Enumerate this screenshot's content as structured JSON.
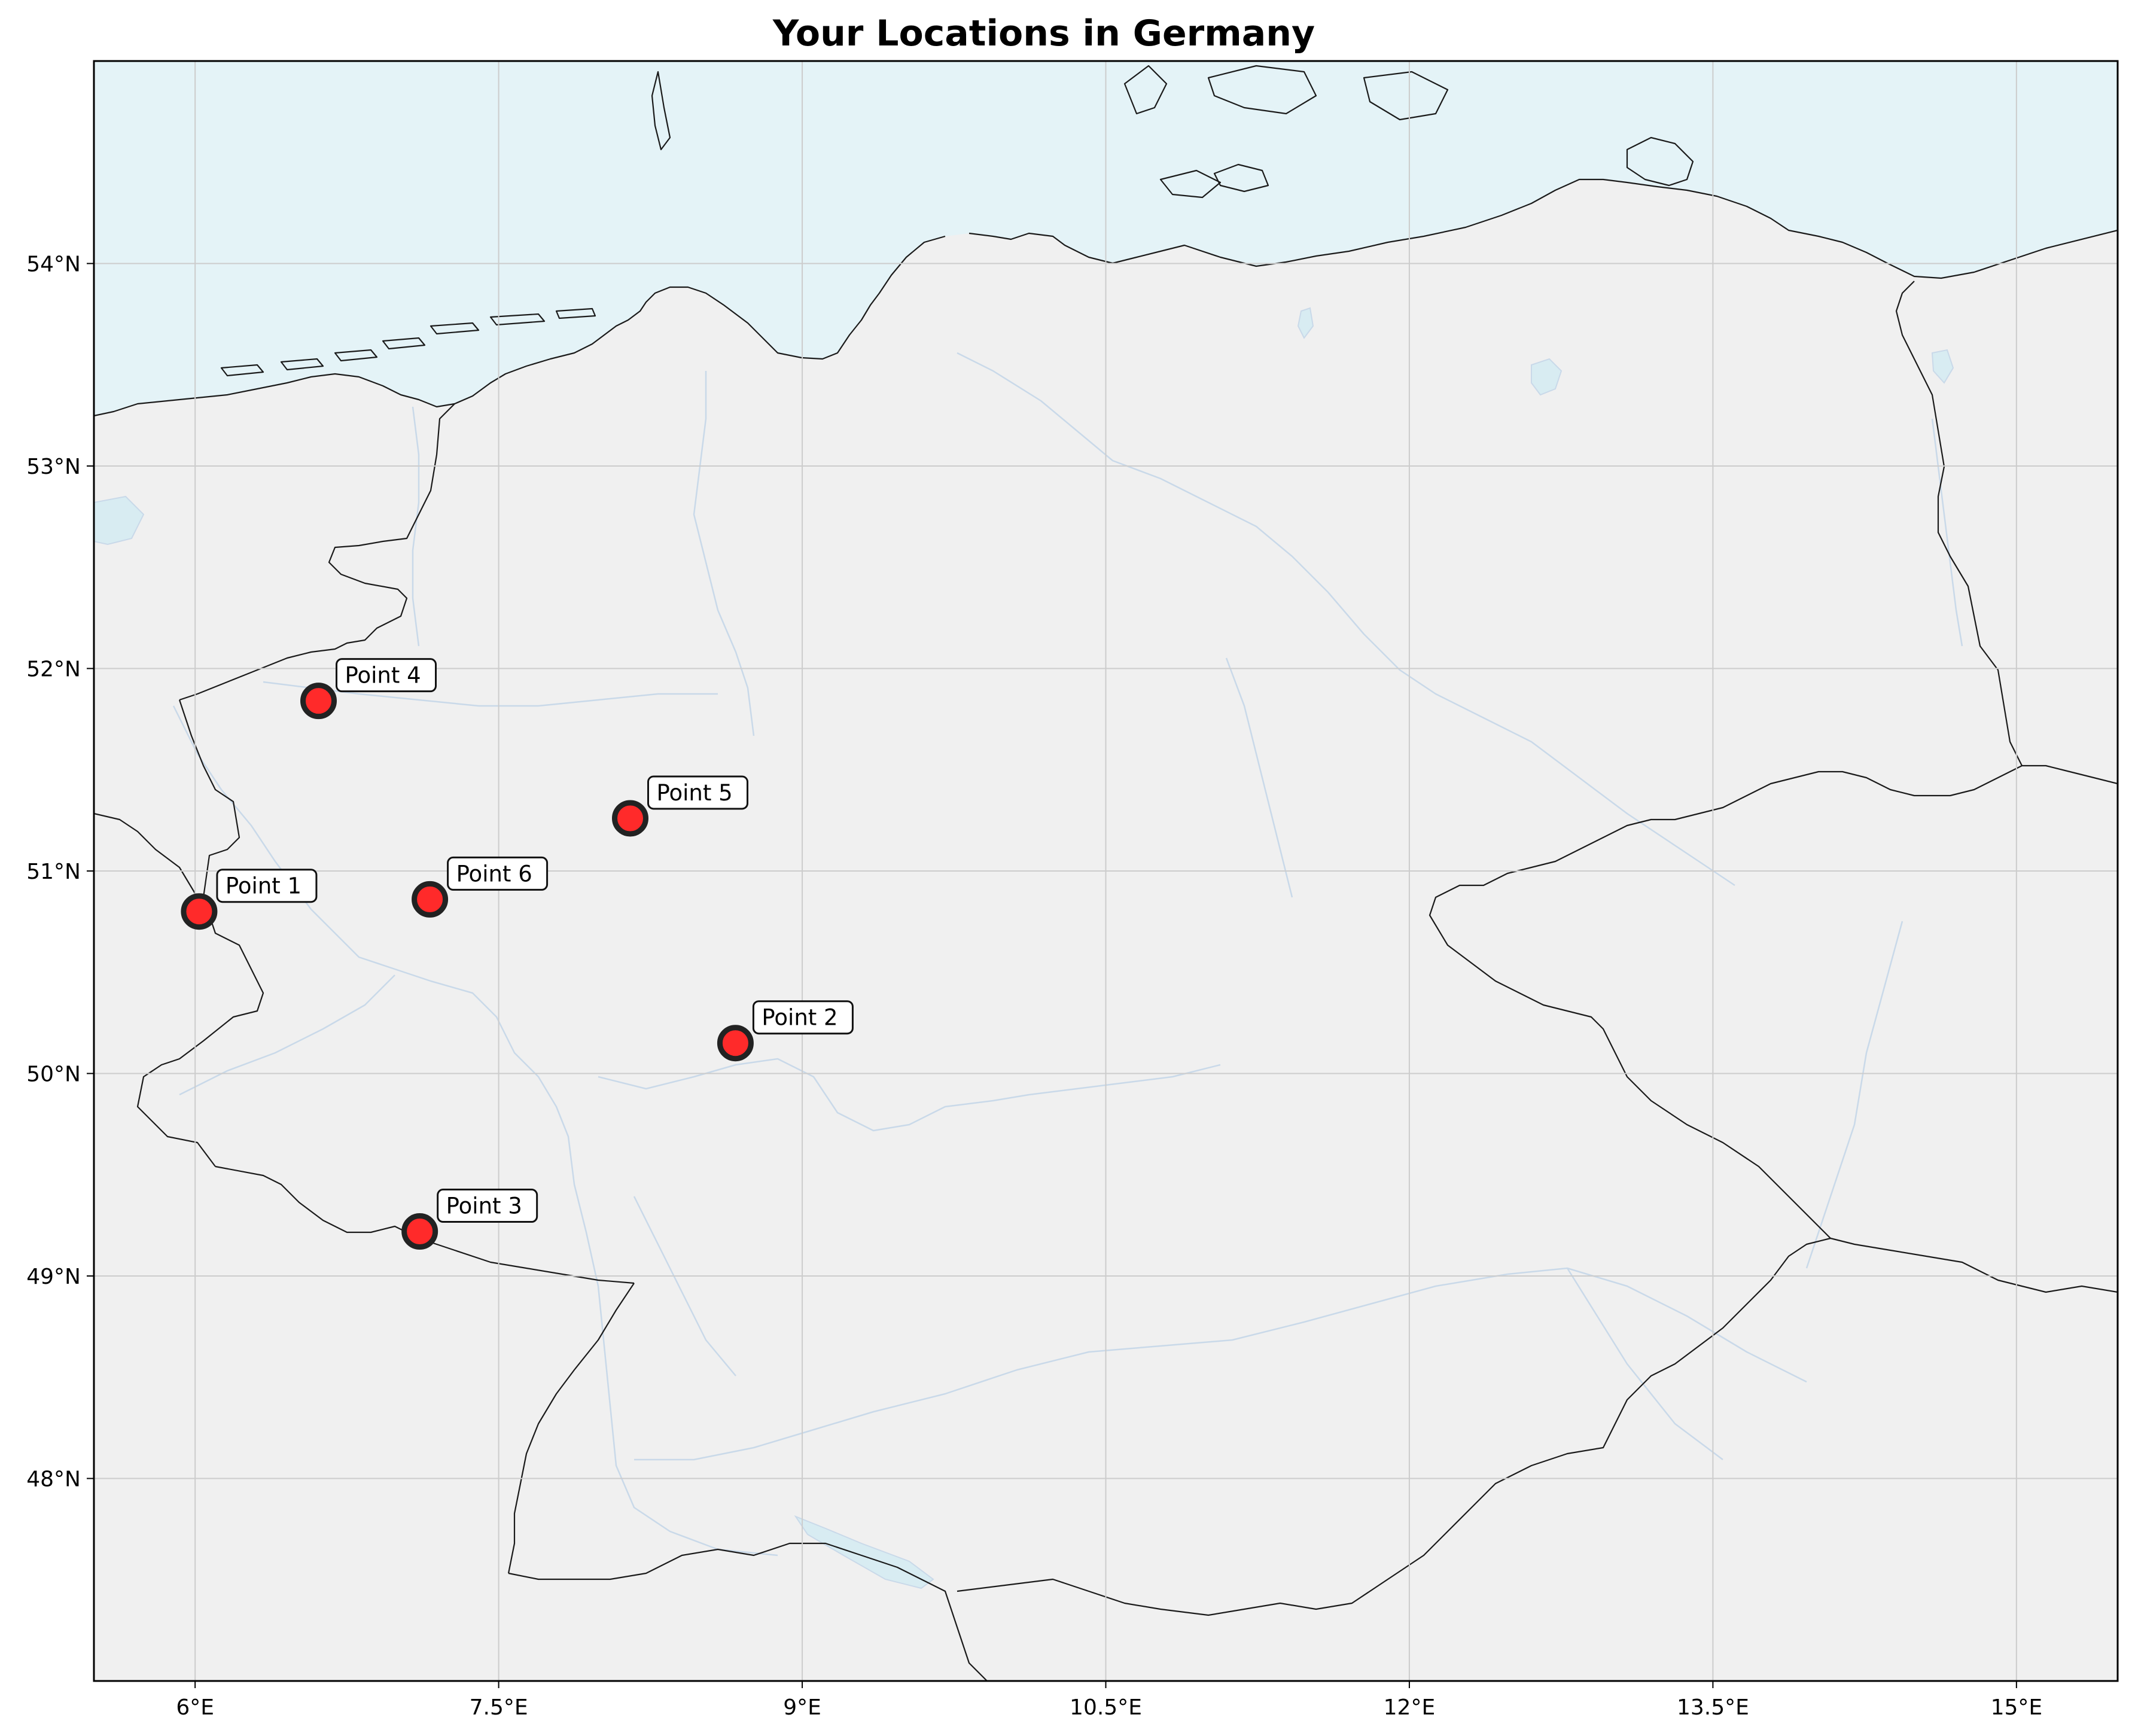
{
  "title": "Your Locations in Germany",
  "map": {
    "extent": {
      "lon": [
        5.5,
        15.5
      ],
      "lat": [
        47.0,
        55.0
      ]
    },
    "x_ticks": [
      {
        "value": 6.0,
        "label": "6°E"
      },
      {
        "value": 7.5,
        "label": "7.5°E"
      },
      {
        "value": 9.0,
        "label": "9°E"
      },
      {
        "value": 10.5,
        "label": "10.5°E"
      },
      {
        "value": 12.0,
        "label": "12°E"
      },
      {
        "value": 13.5,
        "label": "13.5°E"
      },
      {
        "value": 15.0,
        "label": "15°E"
      }
    ],
    "y_ticks": [
      {
        "value": 48.0,
        "label": "48°N"
      },
      {
        "value": 49.0,
        "label": "49°N"
      },
      {
        "value": 50.0,
        "label": "50°N"
      },
      {
        "value": 51.0,
        "label": "51°N"
      },
      {
        "value": 52.0,
        "label": "52°N"
      },
      {
        "value": 53.0,
        "label": "53°N"
      },
      {
        "value": 54.0,
        "label": "54°N"
      }
    ],
    "colors": {
      "land": "#f0f0f0",
      "ocean": "#e4f3f7",
      "marker": "#ff2a2a",
      "borders": "#1a1a1a",
      "rivers": "#c9d9e9"
    }
  },
  "points": [
    {
      "label": "Point 1",
      "lon": 6.02,
      "lat": 50.8
    },
    {
      "label": "Point 2",
      "lon": 8.67,
      "lat": 50.15
    },
    {
      "label": "Point 3",
      "lon": 7.11,
      "lat": 49.22
    },
    {
      "label": "Point 4",
      "lon": 6.61,
      "lat": 51.84
    },
    {
      "label": "Point 5",
      "lon": 8.15,
      "lat": 51.26
    },
    {
      "label": "Point 6",
      "lon": 7.16,
      "lat": 50.86
    }
  ]
}
